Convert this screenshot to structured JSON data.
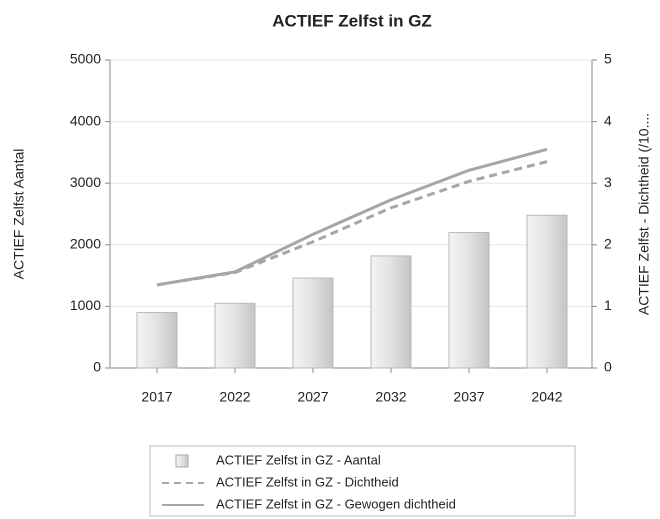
{
  "chart_data": {
    "type": "bar_line",
    "title": "ACTIEF Zelfst in GZ",
    "y_label": "ACTIEF Zelfst Aantal",
    "y2_label": "ACTIEF Zelfst - Dichtheid (/10....",
    "categories": [
      "2017",
      "2022",
      "2027",
      "2032",
      "2037",
      "2042"
    ],
    "series": [
      {
        "name": "ACTIEF Zelfst in GZ - Aantal",
        "type": "bar",
        "color": "#d8d8d8",
        "values": [
          900,
          1050,
          1460,
          1820,
          2200,
          2480
        ]
      },
      {
        "name": "ACTIEF Zelfst in GZ - Dichtheid",
        "type": "line",
        "dashed": true,
        "axis": "y2",
        "color": "#a6a6a6",
        "values": [
          1.35,
          1.55,
          2.05,
          2.6,
          3.03,
          3.35
        ]
      },
      {
        "name": "ACTIEF Zelfst in GZ - Gewogen dichtheid",
        "type": "line",
        "dashed": false,
        "axis": "y2",
        "color": "#a6a6a6",
        "values": [
          1.35,
          1.56,
          2.17,
          2.73,
          3.21,
          3.55
        ]
      }
    ],
    "ylim": [
      0,
      5000
    ],
    "yticks": [
      0,
      1000,
      2000,
      3000,
      4000,
      5000
    ],
    "y2lim": [
      0,
      5
    ],
    "y2ticks": [
      0,
      1,
      2,
      3,
      4,
      5
    ],
    "grid": true
  }
}
